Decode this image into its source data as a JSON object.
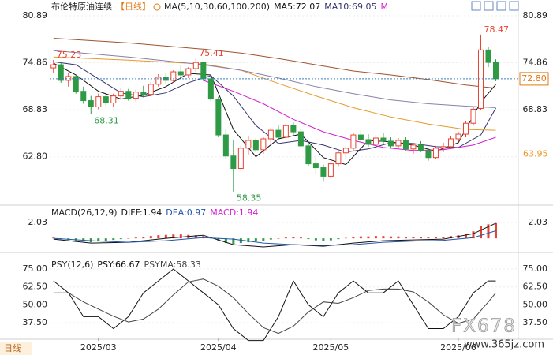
{
  "chart_data": [
    {
      "type": "candlestick",
      "title": "布伦特原油连续",
      "period": "【日线】",
      "indicator": "MA(5,10,30,60,100,200)",
      "readouts": [
        {
          "text": "MA5:72.07",
          "color": "#111111"
        },
        {
          "text": "MA10:69.05",
          "color": "#33336e"
        },
        {
          "text": "M",
          "color": "#d21fd2"
        }
      ],
      "xlim": [
        -0.5,
        62
      ],
      "ylim": [
        56.8,
        82.1
      ],
      "yticks": [
        80.89,
        74.86,
        68.83,
        {
          "value": 62.8,
          "label": "62.80"
        }
      ],
      "up_color": "#e8412f",
      "down_color": "#2f9a45",
      "ohlc": [
        [
          74.2,
          75.23,
          73.6,
          74.6
        ],
        [
          74.6,
          74.9,
          72.3,
          72.6
        ],
        [
          72.6,
          73.5,
          71.8,
          73.1
        ],
        [
          73.1,
          73.3,
          70.9,
          71.2
        ],
        [
          71.2,
          71.8,
          69.6,
          70.0
        ],
        [
          70.0,
          70.6,
          68.31,
          69.2
        ],
        [
          69.2,
          70.9,
          68.9,
          70.5
        ],
        [
          70.5,
          70.8,
          69.4,
          69.7
        ],
        [
          69.7,
          70.9,
          69.2,
          70.6
        ],
        [
          70.6,
          71.6,
          70.1,
          71.2
        ],
        [
          71.2,
          71.5,
          70.0,
          70.3
        ],
        [
          70.3,
          71.4,
          69.9,
          71.1
        ],
        [
          71.1,
          71.9,
          70.4,
          70.8
        ],
        [
          70.8,
          72.4,
          70.6,
          72.1
        ],
        [
          72.1,
          73.4,
          71.8,
          73.0
        ],
        [
          73.0,
          73.6,
          72.2,
          72.6
        ],
        [
          72.6,
          73.9,
          72.3,
          73.7
        ],
        [
          73.7,
          74.5,
          73.0,
          73.3
        ],
        [
          73.3,
          74.3,
          72.9,
          74.1
        ],
        [
          74.1,
          75.41,
          73.7,
          74.9
        ],
        [
          74.9,
          75.0,
          72.5,
          72.8
        ],
        [
          72.8,
          73.0,
          69.9,
          70.2
        ],
        [
          70.2,
          70.5,
          65.3,
          65.6
        ],
        [
          65.6,
          66.4,
          62.5,
          62.9
        ],
        [
          62.9,
          64.9,
          58.35,
          61.3
        ],
        [
          61.3,
          64.2,
          61.0,
          63.9
        ],
        [
          63.9,
          65.4,
          63.1,
          64.9
        ],
        [
          64.9,
          65.2,
          63.4,
          63.7
        ],
        [
          63.7,
          65.3,
          63.2,
          65.1
        ],
        [
          65.1,
          66.5,
          64.6,
          66.2
        ],
        [
          66.2,
          66.9,
          64.9,
          65.3
        ],
        [
          65.3,
          67.1,
          65.0,
          66.8
        ],
        [
          66.8,
          67.2,
          65.6,
          66.0
        ],
        [
          66.0,
          66.3,
          63.9,
          64.2
        ],
        [
          64.2,
          64.5,
          61.6,
          61.9
        ],
        [
          61.9,
          62.7,
          60.6,
          61.4
        ],
        [
          61.4,
          61.8,
          59.6,
          60.3
        ],
        [
          60.3,
          62.2,
          60.0,
          61.9
        ],
        [
          61.9,
          63.6,
          61.5,
          63.3
        ],
        [
          63.3,
          64.3,
          62.6,
          63.9
        ],
        [
          63.9,
          65.9,
          63.6,
          65.6
        ],
        [
          65.6,
          66.2,
          64.7,
          65.0
        ],
        [
          65.0,
          65.7,
          64.1,
          64.4
        ],
        [
          64.4,
          65.6,
          64.0,
          65.2
        ],
        [
          65.2,
          65.9,
          64.5,
          64.8
        ],
        [
          64.8,
          65.3,
          63.9,
          64.2
        ],
        [
          64.2,
          65.2,
          63.8,
          64.9
        ],
        [
          64.9,
          65.3,
          63.6,
          63.8
        ],
        [
          63.8,
          64.6,
          63.2,
          64.3
        ],
        [
          64.3,
          64.8,
          63.4,
          63.6
        ],
        [
          63.6,
          63.9,
          62.3,
          62.7
        ],
        [
          62.7,
          64.2,
          62.5,
          63.9
        ],
        [
          63.9,
          64.6,
          63.4,
          64.1
        ],
        [
          64.1,
          65.4,
          63.8,
          65.1
        ],
        [
          65.1,
          66.0,
          64.7,
          65.7
        ],
        [
          65.7,
          67.4,
          65.3,
          67.1
        ],
        [
          67.1,
          69.2,
          66.8,
          68.9
        ],
        [
          69.0,
          78.47,
          68.8,
          76.5
        ],
        [
          76.5,
          76.9,
          74.3,
          74.9
        ],
        [
          74.9,
          75.3,
          72.5,
          72.8
        ]
      ],
      "series": [
        {
          "color": "#111111",
          "x": [
            0,
            3,
            6,
            9,
            12,
            15,
            18,
            21,
            24,
            27,
            30,
            33,
            36,
            39,
            42,
            45,
            48,
            51,
            54,
            57,
            59
          ],
          "values": [
            74.8,
            73.3,
            71.2,
            70.2,
            70.7,
            71.8,
            73.5,
            73.3,
            66.3,
            62.8,
            65.1,
            65.7,
            62.7,
            61.8,
            64.9,
            64.7,
            64.3,
            63.5,
            64.6,
            69.8,
            72.07
          ]
        },
        {
          "color": "#33336e",
          "x": [
            0,
            3,
            6,
            9,
            12,
            15,
            18,
            21,
            24,
            27,
            30,
            33,
            36,
            39,
            42,
            45,
            48,
            51,
            54,
            57,
            59
          ],
          "values": [
            75.0,
            74.6,
            72.8,
            71.0,
            70.5,
            71.0,
            72.3,
            73.2,
            70.6,
            66.8,
            64.5,
            64.9,
            64.3,
            63.4,
            63.8,
            64.6,
            64.5,
            64.1,
            64.0,
            65.6,
            69.05
          ]
        },
        {
          "color": "#d21fd2",
          "x": [
            20,
            24,
            28,
            32,
            36,
            40,
            44,
            48,
            52,
            56,
            59
          ],
          "values": [
            72.6,
            71.2,
            69.6,
            67.6,
            66.0,
            64.9,
            64.0,
            63.6,
            63.7,
            64.3,
            65.3
          ]
        },
        {
          "color": "#e69a28",
          "x": [
            0,
            10,
            20,
            25,
            30,
            35,
            40,
            45,
            50,
            55,
            59
          ],
          "values": [
            75.6,
            75.2,
            74.7,
            73.9,
            72.2,
            70.6,
            69.1,
            67.9,
            67.0,
            66.3,
            66.2
          ]
        },
        {
          "color": "#8a7fa8",
          "x": [
            0,
            10,
            20,
            25,
            30,
            35,
            40,
            45,
            50,
            55,
            59
          ],
          "values": [
            76.4,
            75.6,
            74.6,
            73.9,
            72.9,
            71.8,
            70.9,
            70.1,
            69.6,
            69.3,
            69.1
          ]
        },
        {
          "color": "#a0522d",
          "x": [
            0,
            10,
            20,
            25,
            30,
            35,
            40,
            45,
            50,
            55,
            59
          ],
          "values": [
            78.0,
            77.4,
            76.6,
            76.1,
            75.4,
            74.6,
            73.8,
            73.3,
            72.7,
            72.0,
            71.6
          ]
        }
      ],
      "last_price": {
        "value": 72.8,
        "label": "72.80"
      },
      "ma_label": {
        "value": 63.95,
        "label": "63.95"
      },
      "annotations": [
        {
          "x": 0,
          "value": 75.23
        },
        {
          "x": 5,
          "value": 68.31
        },
        {
          "x": 19,
          "value": 75.41
        },
        {
          "x": 24,
          "value": 58.35
        },
        {
          "x": 57,
          "value": 78.47
        }
      ]
    },
    {
      "type": "macd",
      "title": "MACD(26,12,9)",
      "readouts": [
        {
          "text": "DIFF:1.94",
          "color": "#111111"
        },
        {
          "text": "DEA:0.97",
          "color": "#2255aa"
        },
        {
          "text": "MACD:1.94",
          "color": "#d21fd2"
        }
      ],
      "xlim": [
        -0.5,
        62
      ],
      "ylim": [
        -1.6,
        4.05
      ],
      "yticks": [
        2.03
      ],
      "up_color": "#e8412f",
      "down_color": "#2f9a45",
      "histogram": [
        0.1,
        -0.1,
        -0.2,
        -0.3,
        -0.4,
        -0.5,
        -0.4,
        -0.3,
        -0.2,
        -0.1,
        0.0,
        0.1,
        0.2,
        0.3,
        0.4,
        0.45,
        0.5,
        0.5,
        0.45,
        0.4,
        0.3,
        0.1,
        -0.3,
        -0.6,
        -0.7,
        -0.6,
        -0.5,
        -0.4,
        -0.3,
        -0.15,
        0.0,
        0.1,
        0.15,
        0.1,
        -0.1,
        -0.25,
        -0.3,
        -0.25,
        -0.1,
        0.05,
        0.2,
        0.25,
        0.25,
        0.3,
        0.3,
        0.25,
        0.25,
        0.2,
        0.2,
        0.15,
        0.1,
        0.15,
        0.2,
        0.3,
        0.4,
        0.6,
        0.9,
        1.6,
        1.8,
        1.94
      ],
      "series": [
        {
          "color": "#111111",
          "x": [
            0,
            5,
            10,
            15,
            20,
            24,
            28,
            32,
            36,
            40,
            44,
            48,
            52,
            56,
            59
          ],
          "values": [
            -0.1,
            -0.6,
            -0.5,
            0.0,
            0.4,
            -0.8,
            -1.1,
            -0.8,
            -1.0,
            -0.6,
            -0.3,
            -0.2,
            -0.1,
            0.6,
            1.94
          ]
        },
        {
          "color": "#2255aa",
          "x": [
            0,
            5,
            10,
            15,
            20,
            24,
            28,
            32,
            36,
            40,
            44,
            48,
            52,
            56,
            59
          ],
          "values": [
            0.0,
            -0.3,
            -0.5,
            -0.3,
            0.1,
            -0.1,
            -0.6,
            -0.8,
            -0.9,
            -0.8,
            -0.5,
            -0.35,
            -0.25,
            0.1,
            0.97
          ]
        }
      ]
    },
    {
      "type": "psy",
      "title": "PSY(12,6)",
      "readouts": [
        {
          "text": "PSY:66.67",
          "color": "#111111"
        },
        {
          "text": "PSYMA:58.33",
          "color": "#444444"
        }
      ],
      "xlim": [
        -0.5,
        62
      ],
      "ylim": [
        27,
        82.2
      ],
      "yticks": [
        {
          "value": 75,
          "label": "75.00"
        },
        {
          "value": 62.5,
          "label": "62.50"
        },
        {
          "value": 50,
          "label": "50.00"
        },
        {
          "value": 37.5,
          "label": "37.50"
        }
      ],
      "xticks": [
        {
          "value": 6,
          "label": "2025/03"
        },
        {
          "value": 22,
          "label": "2025/04"
        },
        {
          "value": 37,
          "label": "2025/05"
        },
        {
          "value": 54,
          "label": "2025/06"
        }
      ],
      "series": [
        {
          "color": "#111111",
          "x": [
            0,
            2,
            4,
            6,
            8,
            10,
            12,
            14,
            16,
            18,
            20,
            22,
            24,
            26,
            28,
            30,
            32,
            34,
            36,
            38,
            40,
            42,
            44,
            46,
            48,
            50,
            52,
            54,
            56,
            58,
            59
          ],
          "values": [
            66.67,
            58.33,
            41.67,
            41.67,
            33.33,
            41.67,
            58.33,
            66.67,
            75,
            66.67,
            58.33,
            50,
            33.33,
            25,
            25,
            41.67,
            66.67,
            50,
            41.67,
            58.33,
            66.67,
            58.33,
            58.33,
            66.67,
            50,
            33.33,
            33.33,
            41.67,
            58.33,
            66.67,
            66.67
          ]
        },
        {
          "color": "#444444",
          "x": [
            0,
            2,
            4,
            6,
            8,
            10,
            12,
            14,
            16,
            18,
            20,
            22,
            24,
            26,
            28,
            30,
            32,
            34,
            36,
            38,
            40,
            42,
            44,
            46,
            48,
            50,
            52,
            54,
            56,
            58,
            59
          ],
          "values": [
            58.33,
            58.33,
            52,
            47,
            42,
            38,
            40,
            47,
            57,
            66,
            68,
            63,
            55,
            44,
            34,
            30,
            35,
            45,
            52,
            51,
            55,
            60,
            61,
            61,
            59,
            52,
            43,
            37,
            40,
            52,
            58.33
          ]
        }
      ]
    }
  ],
  "footer_label": "日线",
  "watermark": {
    "logo": "FX678",
    "url": "www.365jz.com"
  }
}
